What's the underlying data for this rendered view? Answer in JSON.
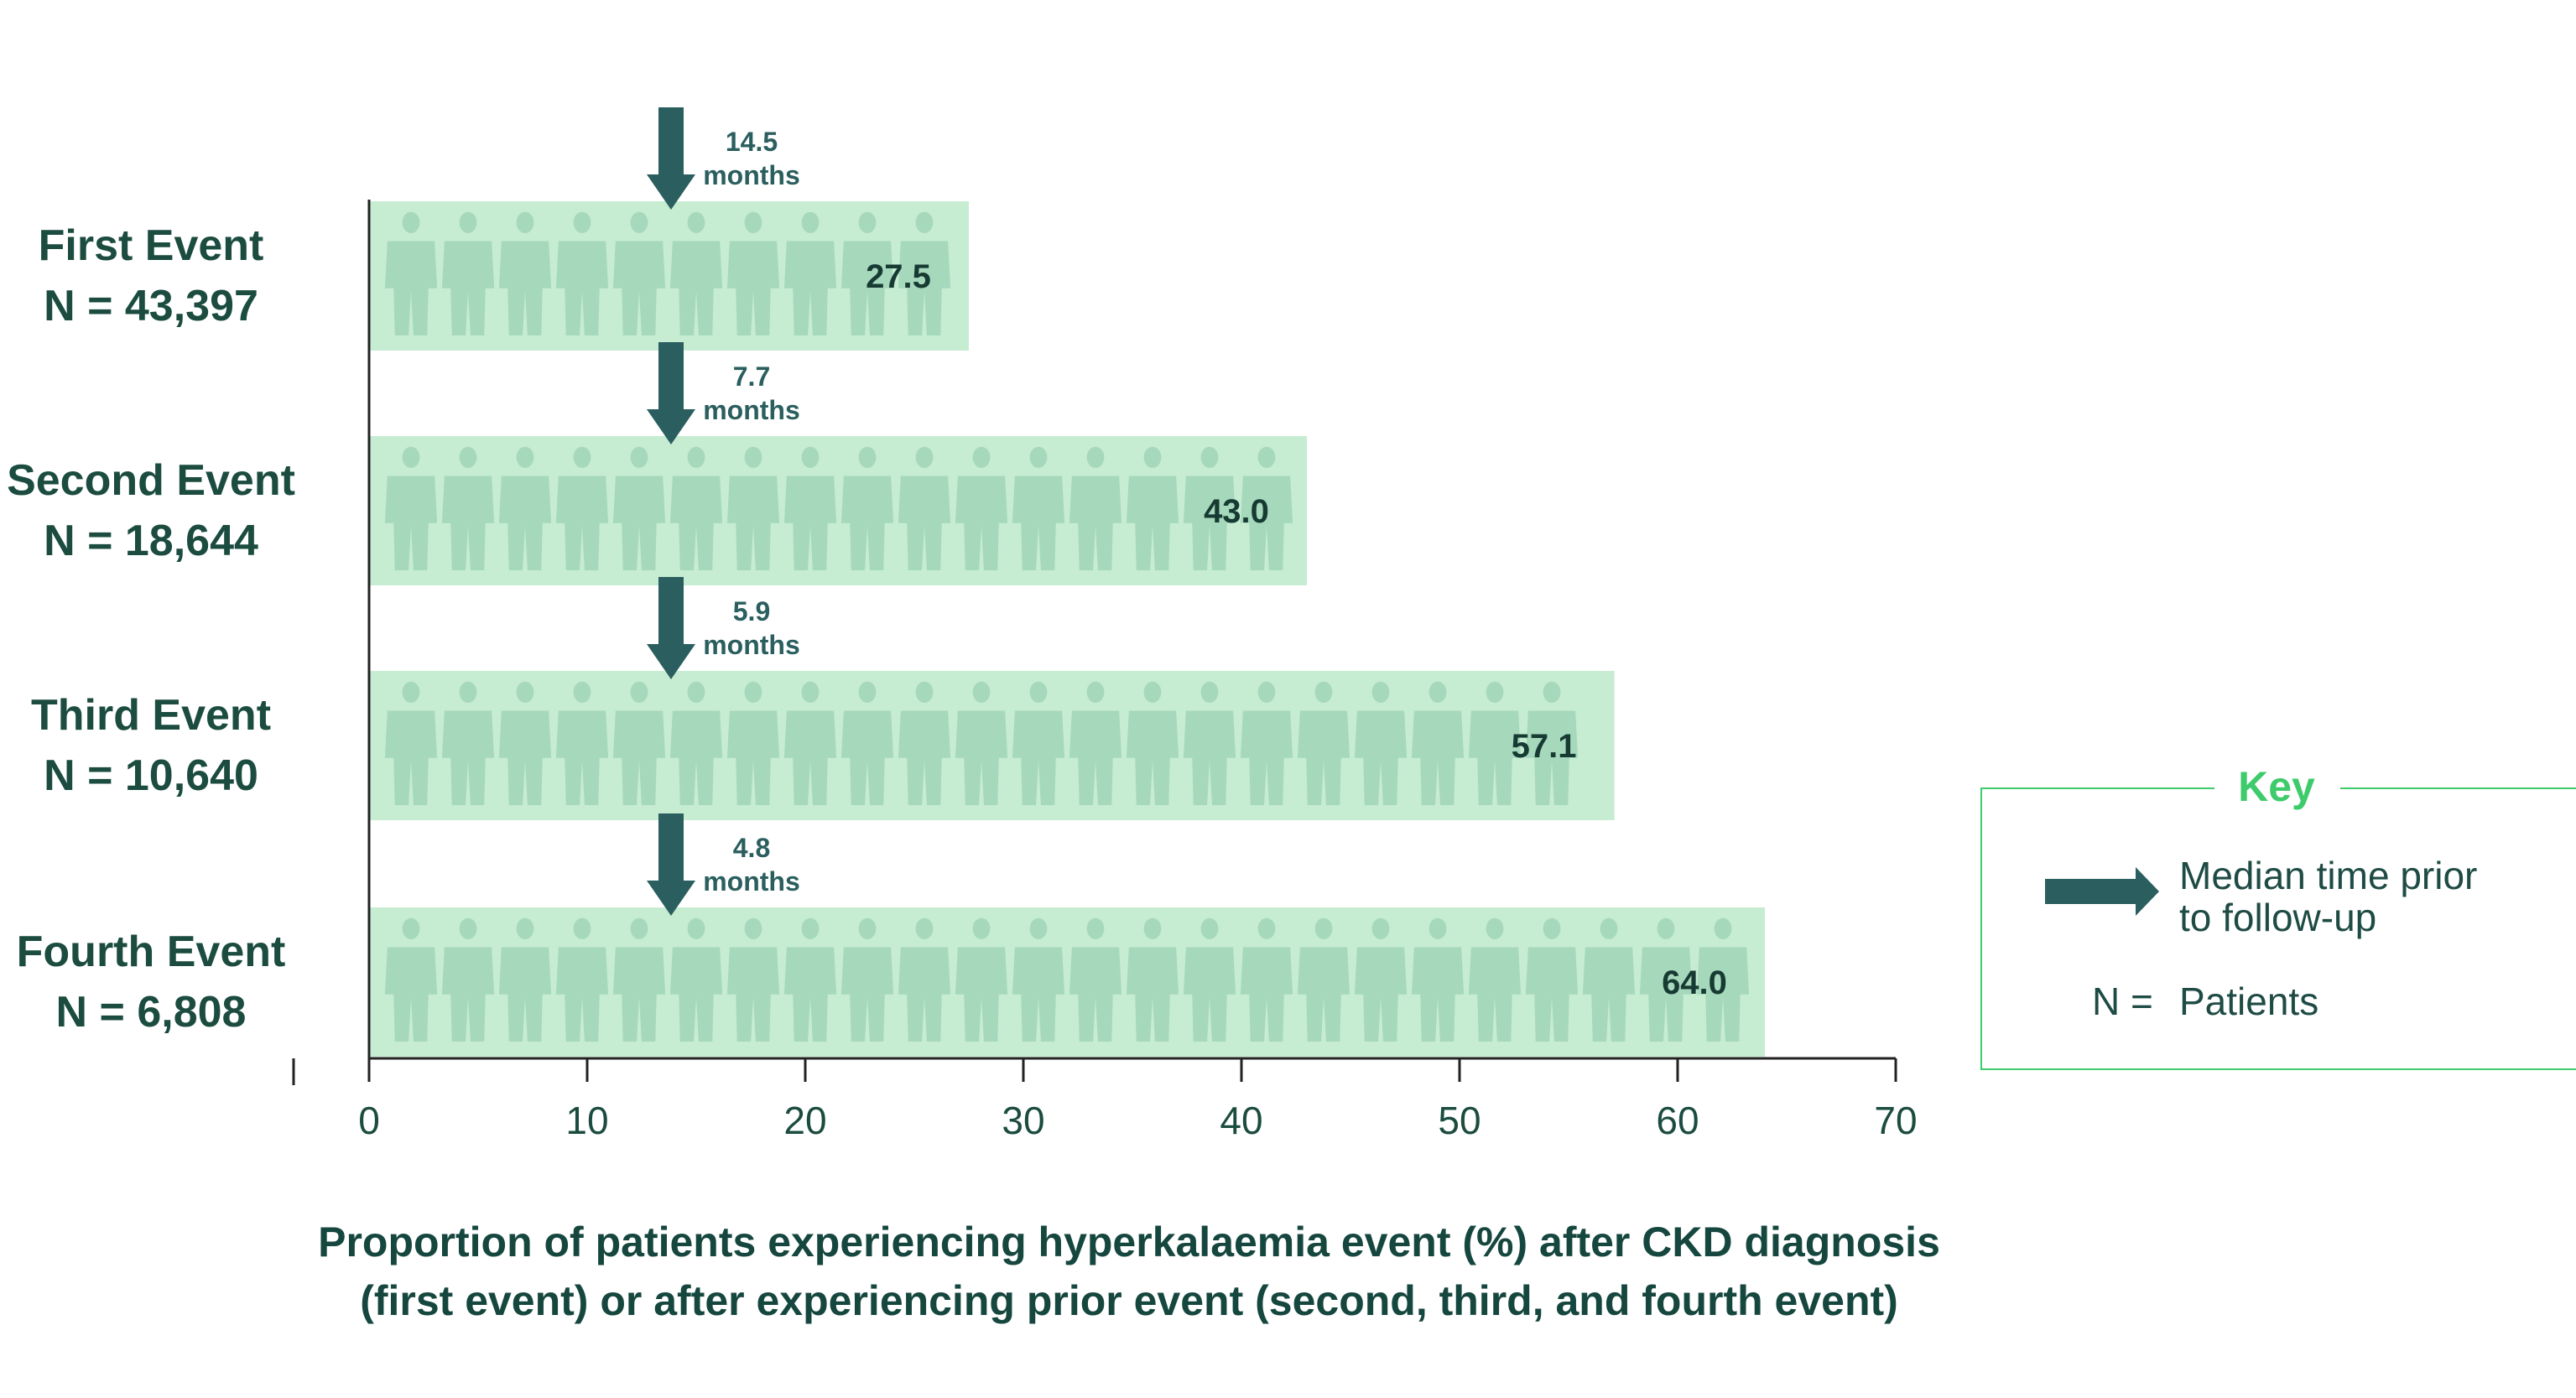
{
  "colors": {
    "bar": "#c6ecd2",
    "person": "#a6d8bc",
    "arrow": "#2b5e5e",
    "axis": "#222222",
    "key_border": "#3ecb6c",
    "key_title": "#3ecb6c"
  },
  "chart_data": {
    "type": "bar",
    "orientation": "horizontal",
    "categories": [
      {
        "name": "First Event",
        "n": "N = 43,397"
      },
      {
        "name": "Second Event",
        "n": "N = 18,644"
      },
      {
        "name": "Third Event",
        "n": "N = 10,640"
      },
      {
        "name": "Fourth Event",
        "n": "N = 6,808"
      }
    ],
    "values": [
      27.5,
      43.0,
      57.1,
      64.0
    ],
    "value_labels": [
      "27.5",
      "43.0",
      "57.1",
      "64.0"
    ],
    "median_times": [
      {
        "value": "14.5",
        "unit": "months"
      },
      {
        "value": "7.7",
        "unit": "months"
      },
      {
        "value": "5.9",
        "unit": "months"
      },
      {
        "value": "4.8",
        "unit": "months"
      }
    ],
    "xlim": [
      0,
      70
    ],
    "xticks": [
      0,
      10,
      20,
      30,
      40,
      50,
      60,
      70
    ],
    "xlabel_line1": "Proportion of patients experiencing hyperkalaemia event (%) after CKD diagnosis",
    "xlabel_line2": "(first event) or after experiencing prior event (second, third, and fourth event)",
    "grid": false
  },
  "key": {
    "title": "Key",
    "arrow_icon": "right-arrow-icon",
    "arrow_text_line1": "Median time prior",
    "arrow_text_line2": "to follow-up",
    "n_symbol": "N =",
    "n_text": "Patients"
  }
}
